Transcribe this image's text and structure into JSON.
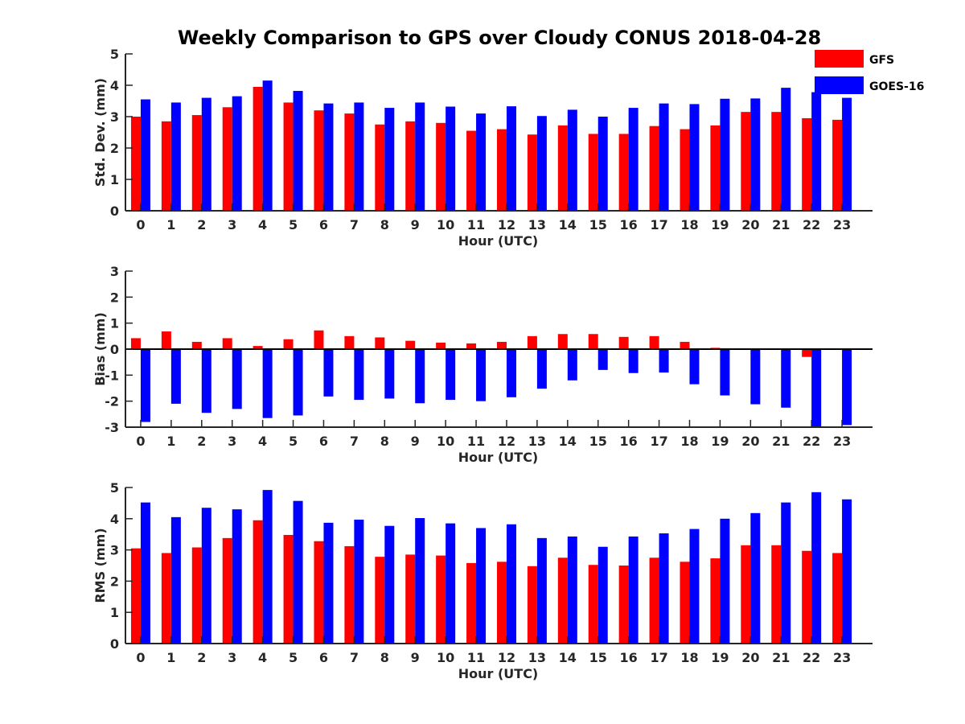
{
  "figure": {
    "title": "Weekly Comparison to GPS over Cloudy CONUS 2018-04-28"
  },
  "legend": {
    "placement": "top-right",
    "items": [
      {
        "label": "GFS",
        "color": "#ff0000"
      },
      {
        "label": "GOES-16",
        "color": "#0000ff"
      }
    ]
  },
  "chart_data": [
    {
      "type": "bar",
      "title": "",
      "xlabel": "Hour (UTC)",
      "ylabel": "Std. Dev. (mm)",
      "ylim": [
        0,
        5
      ],
      "yticks": [
        0,
        1,
        2,
        3,
        4,
        5
      ],
      "grid": false,
      "categories": [
        "0",
        "1",
        "2",
        "3",
        "4",
        "5",
        "6",
        "7",
        "8",
        "9",
        "10",
        "11",
        "12",
        "13",
        "14",
        "15",
        "16",
        "17",
        "18",
        "19",
        "20",
        "21",
        "22",
        "23"
      ],
      "series": [
        {
          "name": "GFS",
          "color": "#ff0000",
          "values": [
            3.0,
            2.85,
            3.05,
            3.3,
            3.95,
            3.45,
            3.2,
            3.1,
            2.75,
            2.85,
            2.8,
            2.55,
            2.6,
            2.43,
            2.72,
            2.45,
            2.45,
            2.7,
            2.6,
            2.72,
            3.15,
            3.15,
            2.95,
            2.9
          ]
        },
        {
          "name": "GOES-16",
          "color": "#0000ff",
          "values": [
            3.55,
            3.45,
            3.6,
            3.65,
            4.15,
            3.82,
            3.42,
            3.45,
            3.28,
            3.45,
            3.32,
            3.1,
            3.33,
            3.02,
            3.22,
            3.0,
            3.28,
            3.42,
            3.4,
            3.57,
            3.58,
            3.92,
            3.78,
            3.6
          ]
        }
      ]
    },
    {
      "type": "bar",
      "title": "",
      "xlabel": "Hour (UTC)",
      "ylabel": "Bias (mm)",
      "ylim": [
        -3,
        3
      ],
      "yticks": [
        -3,
        -2,
        -1,
        0,
        1,
        2,
        3
      ],
      "grid": false,
      "categories": [
        "0",
        "1",
        "2",
        "3",
        "4",
        "5",
        "6",
        "7",
        "8",
        "9",
        "10",
        "11",
        "12",
        "13",
        "14",
        "15",
        "16",
        "17",
        "18",
        "19",
        "20",
        "21",
        "22",
        "23"
      ],
      "series": [
        {
          "name": "GFS",
          "color": "#ff0000",
          "values": [
            0.42,
            0.68,
            0.28,
            0.42,
            0.12,
            0.38,
            0.72,
            0.5,
            0.45,
            0.32,
            0.25,
            0.22,
            0.28,
            0.5,
            0.58,
            0.58,
            0.47,
            0.5,
            0.28,
            0.05,
            0.0,
            0.0,
            -0.3,
            0.02
          ]
        },
        {
          "name": "GOES-16",
          "color": "#0000ff",
          "values": [
            -2.8,
            -2.1,
            -2.45,
            -2.3,
            -2.65,
            -2.55,
            -1.82,
            -1.95,
            -1.9,
            -2.08,
            -1.95,
            -2.0,
            -1.85,
            -1.52,
            -1.2,
            -0.8,
            -0.92,
            -0.9,
            -1.35,
            -1.78,
            -2.12,
            -2.25,
            -3.0,
            -2.92
          ]
        }
      ]
    },
    {
      "type": "bar",
      "title": "",
      "xlabel": "Hour (UTC)",
      "ylabel": "RMS (mm)",
      "ylim": [
        0,
        5
      ],
      "yticks": [
        0,
        1,
        2,
        3,
        4,
        5
      ],
      "grid": false,
      "categories": [
        "0",
        "1",
        "2",
        "3",
        "4",
        "5",
        "6",
        "7",
        "8",
        "9",
        "10",
        "11",
        "12",
        "13",
        "14",
        "15",
        "16",
        "17",
        "18",
        "19",
        "20",
        "21",
        "22",
        "23"
      ],
      "series": [
        {
          "name": "GFS",
          "color": "#ff0000",
          "values": [
            3.05,
            2.9,
            3.08,
            3.38,
            3.95,
            3.48,
            3.28,
            3.12,
            2.78,
            2.85,
            2.82,
            2.58,
            2.62,
            2.48,
            2.75,
            2.52,
            2.5,
            2.75,
            2.62,
            2.73,
            3.15,
            3.15,
            2.97,
            2.9
          ]
        },
        {
          "name": "GOES-16",
          "color": "#0000ff",
          "values": [
            4.52,
            4.05,
            4.35,
            4.3,
            4.92,
            4.57,
            3.87,
            3.97,
            3.77,
            4.02,
            3.85,
            3.7,
            3.82,
            3.38,
            3.43,
            3.1,
            3.43,
            3.53,
            3.67,
            4.0,
            4.18,
            4.52,
            4.85,
            4.62
          ]
        }
      ]
    }
  ]
}
